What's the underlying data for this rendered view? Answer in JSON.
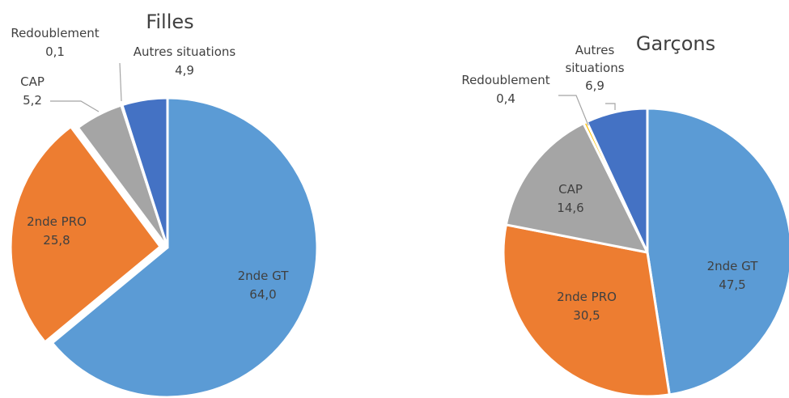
{
  "chart_data": [
    {
      "type": "pie",
      "title": "Filles",
      "categories": [
        "2nde GT",
        "2nde PRO",
        "CAP",
        "Redoublement",
        "Autres situations"
      ],
      "values": [
        64.0,
        25.8,
        5.2,
        0.1,
        4.9
      ],
      "value_labels": [
        "64,0",
        "25,8",
        "5,2",
        "0,1",
        "4,9"
      ],
      "colors": [
        "#5b9bd5",
        "#ed7d31",
        "#a5a5a5",
        "#ffc000",
        "#4472c4"
      ]
    },
    {
      "type": "pie",
      "title": "Garçons",
      "categories": [
        "2nde GT",
        "2nde PRO",
        "CAP",
        "Redoublement",
        "Autres situations"
      ],
      "values": [
        47.5,
        30.5,
        14.6,
        0.4,
        6.9
      ],
      "value_labels": [
        "47,5",
        "30,5",
        "14,6",
        "0,4",
        "6,9"
      ],
      "colors": [
        "#5b9bd5",
        "#ed7d31",
        "#a5a5a5",
        "#ffc000",
        "#4472c4"
      ]
    }
  ]
}
